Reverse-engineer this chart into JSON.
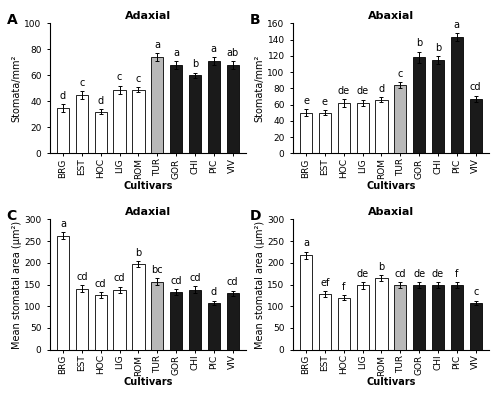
{
  "cultivars": [
    "BRG",
    "EST",
    "HOC",
    "LIG",
    "ROM",
    "TUR",
    "GOR",
    "CHI",
    "PIC",
    "VIV"
  ],
  "bar_colors_hex": [
    "#ffffff",
    "#ffffff",
    "#ffffff",
    "#ffffff",
    "#ffffff",
    "#b8b8b8",
    "#1a1a1a",
    "#1a1a1a",
    "#1a1a1a",
    "#1a1a1a"
  ],
  "panel_A": {
    "title": "Adaxial",
    "ylabel": "Stomata/mm²",
    "values": [
      35,
      45,
      32,
      49,
      49,
      74,
      68,
      60,
      71,
      68
    ],
    "errors": [
      3,
      3,
      2,
      3,
      2,
      3,
      3,
      2,
      3,
      3
    ],
    "letters": [
      "d",
      "c",
      "d",
      "c",
      "c",
      "a",
      "a",
      "b",
      "a",
      "ab"
    ],
    "ylim": [
      0,
      100
    ],
    "yticks": [
      0,
      20,
      40,
      60,
      80,
      100
    ]
  },
  "panel_B": {
    "title": "Abaxial",
    "ylabel": "Stomata/mm²",
    "values": [
      50,
      50,
      62,
      62,
      66,
      84,
      118,
      115,
      143,
      67
    ],
    "errors": [
      4,
      3,
      5,
      4,
      3,
      4,
      7,
      5,
      5,
      4
    ],
    "letters": [
      "e",
      "e",
      "de",
      "de",
      "d",
      "c",
      "b",
      "b",
      "a",
      "cd"
    ],
    "ylim": [
      0,
      160
    ],
    "yticks": [
      0,
      20,
      40,
      60,
      80,
      100,
      120,
      140,
      160
    ]
  },
  "panel_C": {
    "title": "Adaxial",
    "ylabel": "Mean stomatal area (µm²)",
    "values": [
      263,
      140,
      125,
      138,
      197,
      157,
      133,
      138,
      108,
      130
    ],
    "errors": [
      8,
      8,
      7,
      7,
      7,
      7,
      6,
      8,
      5,
      6
    ],
    "letters": [
      "a",
      "cd",
      "cd",
      "cd",
      "b",
      "bc",
      "cd",
      "cd",
      "d",
      "cd"
    ],
    "ylim": [
      0,
      300
    ],
    "yticks": [
      0,
      50,
      100,
      150,
      200,
      250,
      300
    ]
  },
  "panel_D": {
    "title": "Abaxial",
    "ylabel": "Mean stomatal area (µm²)",
    "values": [
      218,
      128,
      120,
      148,
      165,
      148,
      148,
      148,
      148,
      108
    ],
    "errors": [
      8,
      7,
      6,
      8,
      7,
      7,
      7,
      7,
      7,
      5
    ],
    "letters": [
      "a",
      "ef",
      "f",
      "de",
      "b",
      "cd",
      "de",
      "de",
      "f",
      "c"
    ],
    "ylim": [
      0,
      300
    ],
    "yticks": [
      0,
      50,
      100,
      150,
      200,
      250,
      300
    ]
  },
  "xlabel": "Cultivars",
  "panel_labels": [
    "A",
    "B",
    "C",
    "D"
  ],
  "sig_letter_fontsize": 7,
  "axis_label_fontsize": 7,
  "tick_fontsize": 6.5,
  "title_fontsize": 8,
  "panel_label_fontsize": 10,
  "edgecolor": "#000000",
  "background": "#ffffff"
}
